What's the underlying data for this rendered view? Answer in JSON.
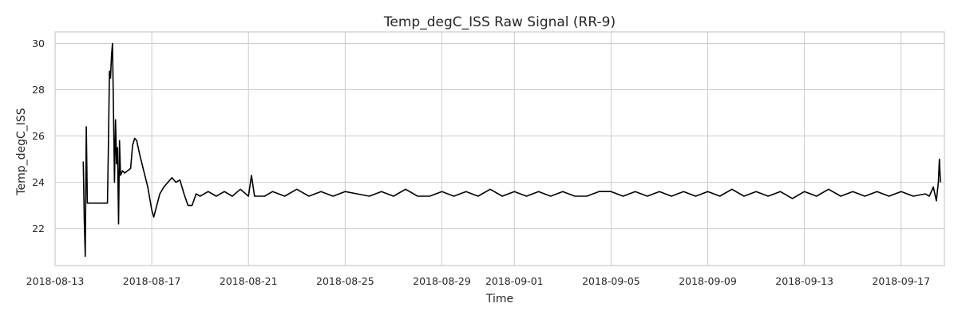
{
  "chart_data": {
    "type": "line",
    "title": "Temp_degC_ISS Raw Signal (RR-9)",
    "xlabel": "Time",
    "ylabel": "Temp_degC_ISS",
    "x_range": [
      "2018-08-13T00:00",
      "2018-09-18T19:00"
    ],
    "ylim": [
      20.4,
      30.5
    ],
    "x_ticks": [
      {
        "date": "2018-08-13",
        "label": "2018-08-13"
      },
      {
        "date": "2018-08-17",
        "label": "2018-08-17"
      },
      {
        "date": "2018-08-21",
        "label": "2018-08-21"
      },
      {
        "date": "2018-08-25",
        "label": "2018-08-25"
      },
      {
        "date": "2018-08-29",
        "label": "2018-08-29"
      },
      {
        "date": "2018-09-01",
        "label": "2018-09-01"
      },
      {
        "date": "2018-09-05",
        "label": "2018-09-05"
      },
      {
        "date": "2018-09-09",
        "label": "2018-09-09"
      },
      {
        "date": "2018-09-13",
        "label": "2018-09-13"
      },
      {
        "date": "2018-09-17",
        "label": "2018-09-17"
      }
    ],
    "y_ticks": [
      {
        "value": 22,
        "label": "22"
      },
      {
        "value": 24,
        "label": "24"
      },
      {
        "value": 26,
        "label": "26"
      },
      {
        "value": 28,
        "label": "28"
      },
      {
        "value": 30,
        "label": "30"
      }
    ],
    "grid": true,
    "line_color": "#000000",
    "series": [
      {
        "points": [
          [
            "2018-08-14T04:00",
            24.9
          ],
          [
            "2018-08-14T05:00",
            22.3
          ],
          [
            "2018-08-14T06:00",
            20.8
          ],
          [
            "2018-08-14T07:00",
            26.4
          ],
          [
            "2018-08-14T08:00",
            23.1
          ],
          [
            "2018-08-15T00:00",
            23.1
          ],
          [
            "2018-08-15T04:00",
            23.1
          ],
          [
            "2018-08-15T05:00",
            25.8
          ],
          [
            "2018-08-15T06:00",
            28.8
          ],
          [
            "2018-08-15T07:00",
            28.5
          ],
          [
            "2018-08-15T08:00",
            29.5
          ],
          [
            "2018-08-15T09:00",
            30.0
          ],
          [
            "2018-08-15T10:00",
            27.0
          ],
          [
            "2018-08-15T11:00",
            24.0
          ],
          [
            "2018-08-15T12:00",
            26.7
          ],
          [
            "2018-08-15T13:00",
            24.8
          ],
          [
            "2018-08-15T14:00",
            25.5
          ],
          [
            "2018-08-15T15:00",
            22.2
          ],
          [
            "2018-08-15T16:00",
            25.8
          ],
          [
            "2018-08-15T17:00",
            24.3
          ],
          [
            "2018-08-15T19:00",
            24.5
          ],
          [
            "2018-08-15T21:00",
            24.4
          ],
          [
            "2018-08-16T00:00",
            24.5
          ],
          [
            "2018-08-16T03:00",
            24.6
          ],
          [
            "2018-08-16T05:00",
            25.6
          ],
          [
            "2018-08-16T07:00",
            25.9
          ],
          [
            "2018-08-16T09:00",
            25.8
          ],
          [
            "2018-08-16T12:00",
            25.2
          ],
          [
            "2018-08-16T16:00",
            24.5
          ],
          [
            "2018-08-16T20:00",
            23.8
          ],
          [
            "2018-08-17T00:00",
            22.8
          ],
          [
            "2018-08-17T02:00",
            22.5
          ],
          [
            "2018-08-17T05:00",
            23.0
          ],
          [
            "2018-08-17T08:00",
            23.5
          ],
          [
            "2018-08-17T12:00",
            23.8
          ],
          [
            "2018-08-17T16:00",
            24.0
          ],
          [
            "2018-08-17T20:00",
            24.2
          ],
          [
            "2018-08-18T00:00",
            24.0
          ],
          [
            "2018-08-18T04:00",
            24.1
          ],
          [
            "2018-08-18T08:00",
            23.5
          ],
          [
            "2018-08-18T12:00",
            23.0
          ],
          [
            "2018-08-18T16:00",
            23.0
          ],
          [
            "2018-08-18T20:00",
            23.5
          ],
          [
            "2018-08-19T00:00",
            23.4
          ],
          [
            "2018-08-19T08:00",
            23.6
          ],
          [
            "2018-08-19T16:00",
            23.4
          ],
          [
            "2018-08-20T00:00",
            23.6
          ],
          [
            "2018-08-20T08:00",
            23.4
          ],
          [
            "2018-08-20T16:00",
            23.7
          ],
          [
            "2018-08-21T00:00",
            23.4
          ],
          [
            "2018-08-21T03:00",
            24.3
          ],
          [
            "2018-08-21T06:00",
            23.4
          ],
          [
            "2018-08-21T16:00",
            23.4
          ],
          [
            "2018-08-22T00:00",
            23.6
          ],
          [
            "2018-08-22T12:00",
            23.4
          ],
          [
            "2018-08-23T00:00",
            23.7
          ],
          [
            "2018-08-23T12:00",
            23.4
          ],
          [
            "2018-08-24T00:00",
            23.6
          ],
          [
            "2018-08-24T12:00",
            23.4
          ],
          [
            "2018-08-25T00:00",
            23.6
          ],
          [
            "2018-08-25T12:00",
            23.5
          ],
          [
            "2018-08-26T00:00",
            23.4
          ],
          [
            "2018-08-26T12:00",
            23.6
          ],
          [
            "2018-08-27T00:00",
            23.4
          ],
          [
            "2018-08-27T12:00",
            23.7
          ],
          [
            "2018-08-28T00:00",
            23.4
          ],
          [
            "2018-08-28T12:00",
            23.4
          ],
          [
            "2018-08-29T00:00",
            23.6
          ],
          [
            "2018-08-29T12:00",
            23.4
          ],
          [
            "2018-08-30T00:00",
            23.6
          ],
          [
            "2018-08-30T12:00",
            23.4
          ],
          [
            "2018-08-31T00:00",
            23.7
          ],
          [
            "2018-08-31T12:00",
            23.4
          ],
          [
            "2018-09-01T00:00",
            23.6
          ],
          [
            "2018-09-01T12:00",
            23.4
          ],
          [
            "2018-09-02T00:00",
            23.6
          ],
          [
            "2018-09-02T12:00",
            23.4
          ],
          [
            "2018-09-03T00:00",
            23.6
          ],
          [
            "2018-09-03T12:00",
            23.4
          ],
          [
            "2018-09-04T00:00",
            23.4
          ],
          [
            "2018-09-04T12:00",
            23.6
          ],
          [
            "2018-09-05T00:00",
            23.6
          ],
          [
            "2018-09-05T12:00",
            23.4
          ],
          [
            "2018-09-06T00:00",
            23.6
          ],
          [
            "2018-09-06T12:00",
            23.4
          ],
          [
            "2018-09-07T00:00",
            23.6
          ],
          [
            "2018-09-07T12:00",
            23.4
          ],
          [
            "2018-09-08T00:00",
            23.6
          ],
          [
            "2018-09-08T12:00",
            23.4
          ],
          [
            "2018-09-09T00:00",
            23.6
          ],
          [
            "2018-09-09T12:00",
            23.4
          ],
          [
            "2018-09-10T00:00",
            23.7
          ],
          [
            "2018-09-10T12:00",
            23.4
          ],
          [
            "2018-09-11T00:00",
            23.6
          ],
          [
            "2018-09-11T12:00",
            23.4
          ],
          [
            "2018-09-12T00:00",
            23.6
          ],
          [
            "2018-09-12T12:00",
            23.3
          ],
          [
            "2018-09-13T00:00",
            23.6
          ],
          [
            "2018-09-13T12:00",
            23.4
          ],
          [
            "2018-09-14T00:00",
            23.7
          ],
          [
            "2018-09-14T12:00",
            23.4
          ],
          [
            "2018-09-15T00:00",
            23.6
          ],
          [
            "2018-09-15T12:00",
            23.4
          ],
          [
            "2018-09-16T00:00",
            23.6
          ],
          [
            "2018-09-16T12:00",
            23.4
          ],
          [
            "2018-09-17T00:00",
            23.6
          ],
          [
            "2018-09-17T12:00",
            23.4
          ],
          [
            "2018-09-18T00:00",
            23.5
          ],
          [
            "2018-09-18T04:00",
            23.4
          ],
          [
            "2018-09-18T08:00",
            23.8
          ],
          [
            "2018-09-18T11:00",
            23.2
          ],
          [
            "2018-09-18T13:00",
            24.0
          ],
          [
            "2018-09-18T14:00",
            25.0
          ],
          [
            "2018-09-18T15:00",
            24.0
          ]
        ]
      }
    ]
  }
}
